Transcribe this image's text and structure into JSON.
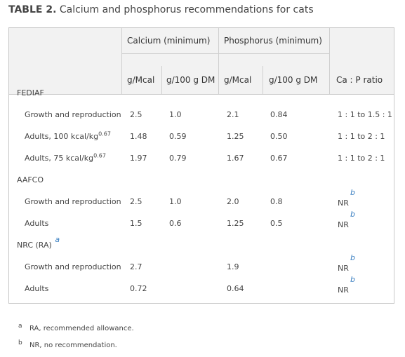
{
  "caption": {
    "label": "TABLE 2.",
    "text": "Calcium and phosphorus recommendations for cats"
  },
  "header": {
    "group_calcium": "Calcium (minimum)",
    "group_phosphorus": "Phosphorus (minimum)",
    "col_ca_mcal": "g/Mcal",
    "col_ca_dm": "g/100 g DM",
    "col_p_mcal": "g/Mcal",
    "col_p_dm": "g/100 g DM",
    "col_ratio": "Ca : P ratio"
  },
  "groups": {
    "fediaf": "FEDIAF",
    "aafco": "AAFCO",
    "nrc": "NRC (RA)",
    "nrc_fn": "a"
  },
  "rows": {
    "f1": {
      "label": "Growth and reproduction",
      "ca_mcal": "2.5",
      "ca_dm": "1.0",
      "p_mcal": "2.1",
      "p_dm": "0.84",
      "ratio": "1 : 1 to 1.5 : 1"
    },
    "f2": {
      "label": "Adults, 100 kcal/kg",
      "label_sup": "0.67",
      "ca_mcal": "1.48",
      "ca_dm": "0.59",
      "p_mcal": "1.25",
      "p_dm": "0.50",
      "ratio": "1 : 1 to 2 : 1"
    },
    "f3": {
      "label": "Adults, 75 kcal/kg",
      "label_sup": "0.67",
      "ca_mcal": "1.97",
      "ca_dm": "0.79",
      "p_mcal": "1.67",
      "p_dm": "0.67",
      "ratio": "1 : 1 to 2 : 1"
    },
    "a1": {
      "label": "Growth and reproduction",
      "ca_mcal": "2.5",
      "ca_dm": "1.0",
      "p_mcal": "2.0",
      "p_dm": "0.8",
      "ratio": "NR",
      "ratio_fn": "b"
    },
    "a2": {
      "label": "Adults",
      "ca_mcal": "1.5",
      "ca_dm": "0.6",
      "p_mcal": "1.25",
      "p_dm": "0.5",
      "ratio": "NR",
      "ratio_fn": "b"
    },
    "n1": {
      "label": "Growth and reproduction",
      "ca_mcal": "2.7",
      "p_mcal": "1.9",
      "ratio": "NR",
      "ratio_fn": "b"
    },
    "n2": {
      "label": "Adults",
      "ca_mcal": "0.72",
      "p_mcal": "0.64",
      "ratio": "NR",
      "ratio_fn": "b"
    }
  },
  "footnotes": [
    {
      "mark": "a",
      "text": "RA, recommended allowance."
    },
    {
      "mark": "b",
      "text": "NR, no recommendation."
    }
  ],
  "colors": {
    "header_bg": "#f2f2f2",
    "border": "#c8c8c8",
    "footnote_link": "#3a7fc1"
  }
}
